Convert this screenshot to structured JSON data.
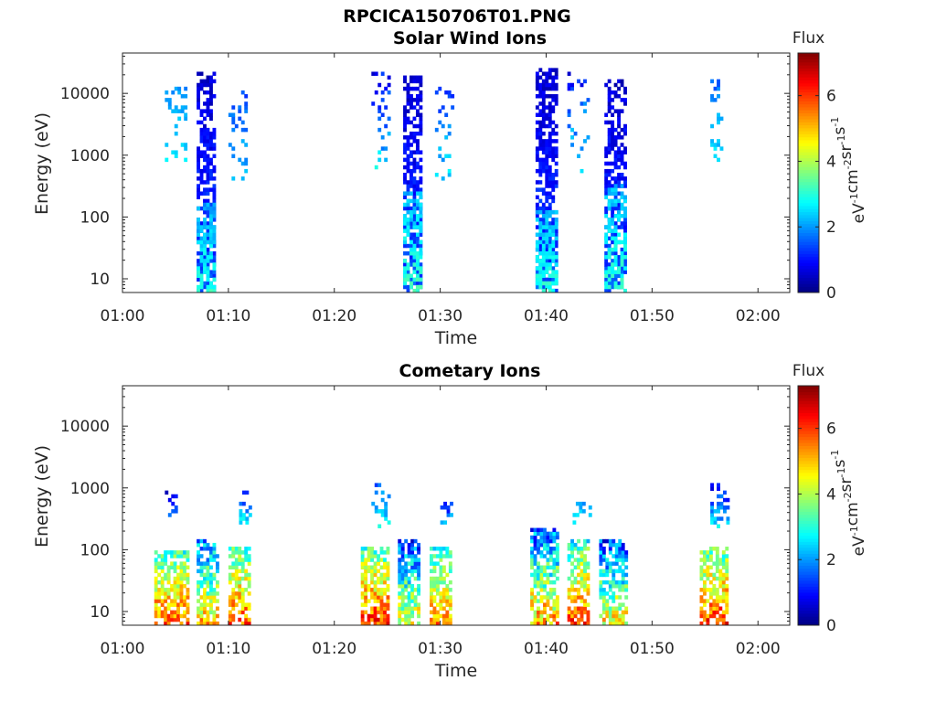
{
  "figure": {
    "title": "RPCICA150706T01.PNG"
  },
  "colors": {
    "colormap": "jet",
    "axis": "#262626",
    "background": "#ffffff"
  },
  "chart_data": [
    {
      "type": "heatmap",
      "title": "Solar Wind Ions",
      "xlabel": "Time",
      "ylabel": "Energy (eV)",
      "y_scale": "log",
      "xlim": [
        "01:00",
        "02:03"
      ],
      "ylim": [
        6,
        45000
      ],
      "x_ticks": [
        "01:00",
        "01:10",
        "01:20",
        "01:30",
        "01:40",
        "01:50",
        "02:00"
      ],
      "y_ticks": [
        "10",
        "100",
        "1000",
        "10000"
      ],
      "colorbar": {
        "title": "Flux",
        "label": "eV-1cm-2sr-1s-1",
        "range": [
          0,
          7.3
        ],
        "ticks": [
          "0",
          "2",
          "4",
          "6"
        ]
      },
      "bursts": [
        {
          "start": "01:04",
          "end": "01:06",
          "emin": 700,
          "emax": 12000,
          "fmin": 1.8,
          "fmax": 2.6,
          "density": 0.16
        },
        {
          "start": "01:07",
          "end": "01:08.6",
          "emin": 6,
          "emax": 20000,
          "fmin": 0.3,
          "fmax": 1.5,
          "density": 0.6
        },
        {
          "start": "01:07",
          "end": "01:08.6",
          "emin": 6,
          "emax": 150,
          "fmin": 1.8,
          "fmax": 3.0,
          "density": 0.55
        },
        {
          "start": "01:10",
          "end": "01:11.5",
          "emin": 300,
          "emax": 10000,
          "fmin": 1.2,
          "fmax": 2.4,
          "density": 0.2
        },
        {
          "start": "01:23.5",
          "end": "01:25",
          "emin": 500,
          "emax": 20000,
          "fmin": 0.5,
          "fmax": 2.6,
          "density": 0.14
        },
        {
          "start": "01:26.5",
          "end": "01:28",
          "emin": 6,
          "emax": 18000,
          "fmin": 0.3,
          "fmax": 1.5,
          "density": 0.62
        },
        {
          "start": "01:26.5",
          "end": "01:28",
          "emin": 6,
          "emax": 250,
          "fmin": 2.0,
          "fmax": 3.1,
          "density": 0.55
        },
        {
          "start": "01:29.5",
          "end": "01:31",
          "emin": 300,
          "emax": 12000,
          "fmin": 1.0,
          "fmax": 2.6,
          "density": 0.18
        },
        {
          "start": "01:39",
          "end": "01:41",
          "emin": 6,
          "emax": 25000,
          "fmin": 0.3,
          "fmax": 1.5,
          "density": 0.65
        },
        {
          "start": "01:39",
          "end": "01:41",
          "emin": 6,
          "emax": 120,
          "fmin": 2.0,
          "fmax": 3.0,
          "density": 0.6
        },
        {
          "start": "01:42",
          "end": "01:44",
          "emin": 500,
          "emax": 20000,
          "fmin": 0.6,
          "fmax": 2.6,
          "density": 0.16
        },
        {
          "start": "01:45.5",
          "end": "01:47.5",
          "emin": 6,
          "emax": 15000,
          "fmin": 0.3,
          "fmax": 1.5,
          "density": 0.6
        },
        {
          "start": "01:45.5",
          "end": "01:47.5",
          "emin": 6,
          "emax": 300,
          "fmin": 2.0,
          "fmax": 3.1,
          "density": 0.5
        },
        {
          "start": "01:55.5",
          "end": "01:56.5",
          "emin": 600,
          "emax": 15000,
          "fmin": 1.4,
          "fmax": 2.6,
          "density": 0.25
        }
      ]
    },
    {
      "type": "heatmap",
      "title": "Cometary Ions",
      "xlabel": "Time",
      "ylabel": "Energy (eV)",
      "y_scale": "log",
      "xlim": [
        "01:00",
        "02:03"
      ],
      "ylim": [
        6,
        45000
      ],
      "x_ticks": [
        "01:00",
        "01:10",
        "01:20",
        "01:30",
        "01:40",
        "01:50",
        "02:00"
      ],
      "y_ticks": [
        "10",
        "100",
        "1000",
        "10000"
      ],
      "colorbar": {
        "title": "Flux",
        "label": "eV-1cm-2sr-1s-1",
        "range": [
          0,
          7.3
        ],
        "ticks": [
          "0",
          "2",
          "4",
          "6"
        ]
      },
      "bursts": [
        {
          "start": "01:03",
          "end": "01:06",
          "emin": 6,
          "emax": 90,
          "fmin": 2.4,
          "fmax": 5.8,
          "density": 0.7
        },
        {
          "start": "01:04",
          "end": "01:05",
          "emin": 300,
          "emax": 800,
          "fmin": 0.4,
          "fmax": 1.6,
          "density": 0.3
        },
        {
          "start": "01:07",
          "end": "01:09",
          "emin": 6,
          "emax": 130,
          "fmin": 1.0,
          "fmax": 5.0,
          "density": 0.65
        },
        {
          "start": "01:10",
          "end": "01:12",
          "emin": 6,
          "emax": 110,
          "fmin": 2.4,
          "fmax": 5.8,
          "density": 0.7
        },
        {
          "start": "01:11",
          "end": "01:12",
          "emin": 250,
          "emax": 800,
          "fmin": 0.4,
          "fmax": 2.6,
          "density": 0.25
        },
        {
          "start": "01:22.5",
          "end": "01:25",
          "emin": 6,
          "emax": 110,
          "fmin": 2.4,
          "fmax": 6.0,
          "density": 0.7
        },
        {
          "start": "01:23.5",
          "end": "01:25",
          "emin": 200,
          "emax": 1300,
          "fmin": 1.0,
          "fmax": 2.8,
          "density": 0.25
        },
        {
          "start": "01:26",
          "end": "01:28",
          "emin": 6,
          "emax": 130,
          "fmin": 0.5,
          "fmax": 4.6,
          "density": 0.7
        },
        {
          "start": "01:29",
          "end": "01:31",
          "emin": 6,
          "emax": 110,
          "fmin": 2.2,
          "fmax": 5.4,
          "density": 0.65
        },
        {
          "start": "01:30",
          "end": "01:31",
          "emin": 200,
          "emax": 600,
          "fmin": 0.4,
          "fmax": 2.6,
          "density": 0.3
        },
        {
          "start": "01:38.5",
          "end": "01:41",
          "emin": 6,
          "emax": 200,
          "fmin": 0.6,
          "fmax": 5.2,
          "density": 0.7
        },
        {
          "start": "01:42",
          "end": "01:44",
          "emin": 6,
          "emax": 130,
          "fmin": 2.2,
          "fmax": 5.8,
          "density": 0.7
        },
        {
          "start": "01:42.5",
          "end": "01:44",
          "emin": 200,
          "emax": 600,
          "fmin": 1.8,
          "fmax": 2.8,
          "density": 0.25
        },
        {
          "start": "01:45",
          "end": "01:47.5",
          "emin": 6,
          "emax": 130,
          "fmin": 0.5,
          "fmax": 4.6,
          "density": 0.65
        },
        {
          "start": "01:54.5",
          "end": "01:57",
          "emin": 6,
          "emax": 110,
          "fmin": 2.4,
          "fmax": 6.0,
          "density": 0.7
        },
        {
          "start": "01:55.5",
          "end": "01:57",
          "emin": 200,
          "emax": 1100,
          "fmin": 0.4,
          "fmax": 2.6,
          "density": 0.3
        }
      ]
    }
  ]
}
